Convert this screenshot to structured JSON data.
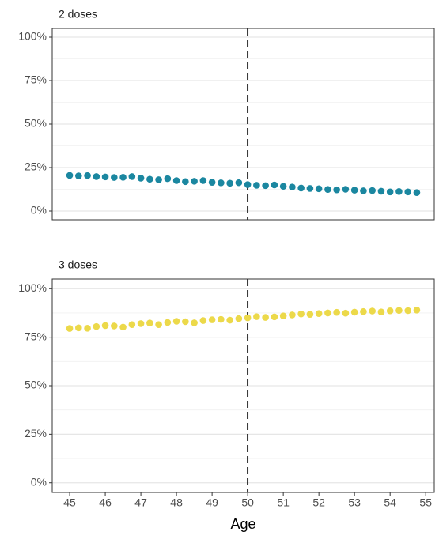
{
  "chart_data": [
    {
      "type": "scatter",
      "title": "2 doses",
      "x": [
        45,
        45.25,
        45.5,
        45.75,
        46,
        46.25,
        46.5,
        46.75,
        47,
        47.25,
        47.5,
        47.75,
        48,
        48.25,
        48.5,
        48.75,
        49,
        49.25,
        49.5,
        49.75,
        50,
        50.25,
        50.5,
        50.75,
        51,
        51.25,
        51.5,
        51.75,
        52,
        52.25,
        52.5,
        52.75,
        53,
        53.25,
        53.5,
        53.75,
        54,
        54.25,
        54.5,
        54.75
      ],
      "series": [
        {
          "color": "#1b87a0",
          "values": [
            20.5,
            20.2,
            20.4,
            19.8,
            19.6,
            19.3,
            19.4,
            19.8,
            18.9,
            18.3,
            18.0,
            18.6,
            17.5,
            16.9,
            17.1,
            17.5,
            16.5,
            16.2,
            16.0,
            16.3,
            15.2,
            14.8,
            14.6,
            15.0,
            14.2,
            13.8,
            13.2,
            13.0,
            12.8,
            12.4,
            12.2,
            12.5,
            12.0,
            11.6,
            11.8,
            11.4,
            11.0,
            11.2,
            11.0,
            10.6
          ]
        }
      ],
      "vline": 50,
      "xlim": [
        44.51,
        55.24
      ],
      "ylim": [
        -5,
        105
      ],
      "yticks": [
        {
          "value": 0,
          "label": "0%"
        },
        {
          "value": 25,
          "label": "25%"
        },
        {
          "value": 50,
          "label": "50%"
        },
        {
          "value": 75,
          "label": "75%"
        },
        {
          "value": 100,
          "label": "100%"
        }
      ],
      "grid": true
    },
    {
      "type": "scatter",
      "title": "3 doses",
      "xlabel": "Age",
      "x": [
        45,
        45.25,
        45.5,
        45.75,
        46,
        46.25,
        46.5,
        46.75,
        47,
        47.25,
        47.5,
        47.75,
        48,
        48.25,
        48.5,
        48.75,
        49,
        49.25,
        49.5,
        49.75,
        50,
        50.25,
        50.5,
        50.75,
        51,
        51.25,
        51.5,
        51.75,
        52,
        52.25,
        52.5,
        52.75,
        53,
        53.25,
        53.5,
        53.75,
        54,
        54.25,
        54.5,
        54.75
      ],
      "series": [
        {
          "color": "#ecd94a",
          "values": [
            79.5,
            79.8,
            79.6,
            80.5,
            81.0,
            80.8,
            80.2,
            81.5,
            82.0,
            82.3,
            81.5,
            82.6,
            83.2,
            83.0,
            82.4,
            83.6,
            84.0,
            84.2,
            83.8,
            84.6,
            85.0,
            85.6,
            85.2,
            85.5,
            86.0,
            86.5,
            87.0,
            86.8,
            87.2,
            87.5,
            87.8,
            87.4,
            87.9,
            88.2,
            88.5,
            88.0,
            88.6,
            88.8,
            88.7,
            89.0
          ]
        }
      ],
      "vline": 50,
      "xlim": [
        44.51,
        55.24
      ],
      "ylim": [
        -5,
        105
      ],
      "xticks": [
        45,
        46,
        47,
        48,
        49,
        50,
        51,
        52,
        53,
        54,
        55
      ],
      "yticks": [
        {
          "value": 0,
          "label": "0%"
        },
        {
          "value": 25,
          "label": "25%"
        },
        {
          "value": 50,
          "label": "50%"
        },
        {
          "value": 75,
          "label": "75%"
        },
        {
          "value": 100,
          "label": "100%"
        }
      ],
      "grid": true
    }
  ]
}
